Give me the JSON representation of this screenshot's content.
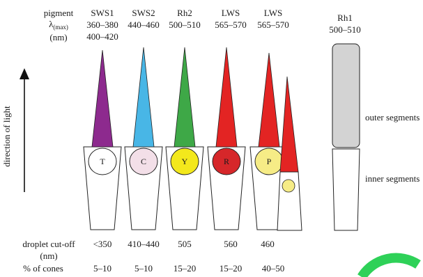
{
  "header": {
    "pigment_label": "pigment",
    "lambda_label": "λ",
    "lambda_sub": "(max)",
    "nm_label": "(nm)"
  },
  "columns": [
    {
      "pigment": "SWS1",
      "lambda_line1": "360–380",
      "lambda_line2": "400–420",
      "letter": "T",
      "cone_color": "#8d2a8e",
      "droplet_color": "#ffffff",
      "cutoff": "<350",
      "percent": "5–10"
    },
    {
      "pigment": "SWS2",
      "lambda_line1": "440–460",
      "lambda_line2": "",
      "letter": "C",
      "cone_color": "#48b6e6",
      "droplet_color": "#f3dfe8",
      "cutoff": "410–440",
      "percent": "5–10"
    },
    {
      "pigment": "Rh2",
      "lambda_line1": "500–510",
      "lambda_line2": "",
      "letter": "Y",
      "cone_color": "#3ea847",
      "droplet_color": "#f3e81c",
      "cutoff": "505",
      "percent": "15–20"
    },
    {
      "pigment": "LWS",
      "lambda_line1": "565–570",
      "lambda_line2": "",
      "letter": "R",
      "cone_color": "#e32423",
      "droplet_color": "#d6272a",
      "cutoff": "560",
      "percent": "15–20"
    },
    {
      "pigment": "LWS",
      "lambda_line1": "565–570",
      "lambda_line2": "",
      "letter": "P",
      "cone_color": "#e32423",
      "droplet_color": "#f6ec86",
      "cutoff": "460",
      "percent": "40–50"
    }
  ],
  "double_cone": {
    "outer_color": "#e32423",
    "droplet_color": "#f6ec86"
  },
  "rod": {
    "pigment": "Rh1",
    "lambda": "500–510",
    "color": "#d3d3d3"
  },
  "side_labels": {
    "outer": "outer segments",
    "inner": "inner segments"
  },
  "axis": {
    "direction": "direction of light"
  },
  "rows": {
    "cutoff_line1": "droplet cut-off",
    "cutoff_line2": "(nm)",
    "percent_label": "% of cones"
  },
  "corner_logo": {
    "color": "#2ed158"
  }
}
